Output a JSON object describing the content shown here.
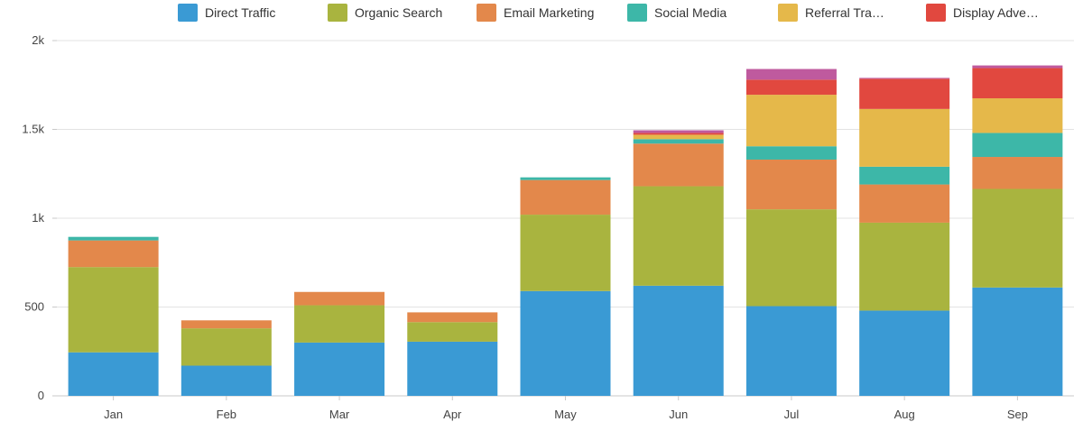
{
  "chart_data": {
    "type": "bar",
    "stacked": true,
    "title": "",
    "xlabel": "",
    "ylabel": "",
    "categories": [
      "Jan",
      "Feb",
      "Mar",
      "Apr",
      "May",
      "Jun",
      "Jul",
      "Aug",
      "Sep"
    ],
    "ylim": [
      0,
      2000
    ],
    "yticks": [
      0,
      500,
      1000,
      1500,
      2000
    ],
    "ytick_labels": [
      "0",
      "500",
      "1k",
      "1.5k",
      "2k"
    ],
    "grid": true,
    "legend_position": "top",
    "series": [
      {
        "name": "Direct Traffic",
        "color": "#3a9ad4",
        "values": [
          245,
          170,
          300,
          305,
          590,
          620,
          505,
          480,
          610
        ]
      },
      {
        "name": "Organic Search",
        "color": "#a9b43f",
        "values": [
          480,
          210,
          210,
          110,
          430,
          560,
          545,
          495,
          555
        ]
      },
      {
        "name": "Email Marketing",
        "color": "#e3884b",
        "values": [
          150,
          45,
          75,
          55,
          195,
          240,
          280,
          215,
          180
        ]
      },
      {
        "name": "Social Media",
        "color": "#3db7a8",
        "values": [
          20,
          0,
          0,
          0,
          15,
          25,
          75,
          100,
          135
        ]
      },
      {
        "name": "Referral Tra…",
        "color": "#e5b84a",
        "values": [
          0,
          0,
          0,
          0,
          0,
          25,
          290,
          325,
          195
        ]
      },
      {
        "name": "Display Adve…",
        "color": "#e1483f",
        "values": [
          0,
          0,
          0,
          0,
          0,
          10,
          85,
          170,
          170
        ]
      },
      {
        "name": "",
        "color": "#bf5a9e",
        "values": [
          0,
          0,
          0,
          0,
          0,
          15,
          60,
          5,
          15
        ]
      }
    ]
  }
}
